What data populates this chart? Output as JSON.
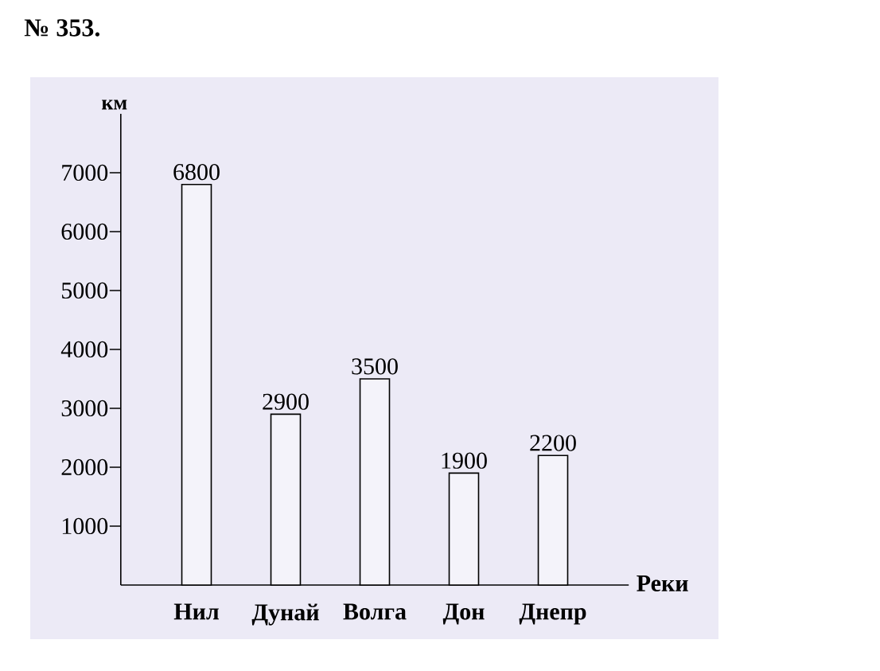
{
  "chart_data": {
    "type": "bar",
    "title": "№ 353.",
    "xlabel": "Реки",
    "ylabel": "км",
    "categories": [
      "Нил",
      "Дунай",
      "Волга",
      "Дон",
      "Днепр"
    ],
    "values": [
      6800,
      2900,
      3500,
      1900,
      2200
    ],
    "color": "#000000",
    "ylim": [
      0,
      8000
    ],
    "yticks": [
      1000,
      2000,
      3000,
      4000,
      5000,
      6000,
      7000
    ],
    "data_labels": true
  }
}
